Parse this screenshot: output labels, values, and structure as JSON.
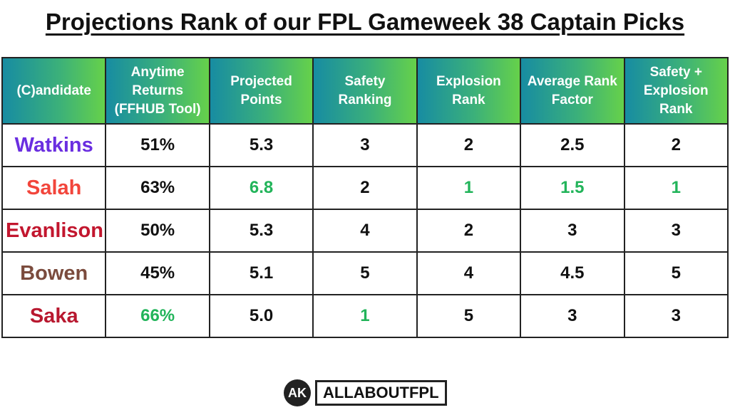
{
  "title": "Projections Rank of our FPL Gameweek 38 Captain Picks",
  "table": {
    "headers": [
      "(C)andidate",
      "Anytime Returns (FFHUB Tool)",
      "Projected Points",
      "Safety Ranking",
      "Explosion Rank",
      "Average Rank Factor",
      "Safety + Explosion Rank"
    ],
    "rows": [
      [
        "Watkins",
        "51%",
        "5.3",
        "3",
        "2",
        "2.5",
        "2"
      ],
      [
        "Salah",
        "63%",
        "6.8",
        "2",
        "1",
        "1.5",
        "1"
      ],
      [
        "Evanlison",
        "50%",
        "5.3",
        "4",
        "2",
        "3",
        "3"
      ],
      [
        "Bowen",
        "45%",
        "5.1",
        "5",
        "4",
        "4.5",
        "5"
      ],
      [
        "Saka",
        "66%",
        "5.0",
        "1",
        "5",
        "3",
        "3"
      ]
    ]
  },
  "footer": {
    "logo_initials": "AK",
    "brand": "ALLABOUTFPL"
  }
}
